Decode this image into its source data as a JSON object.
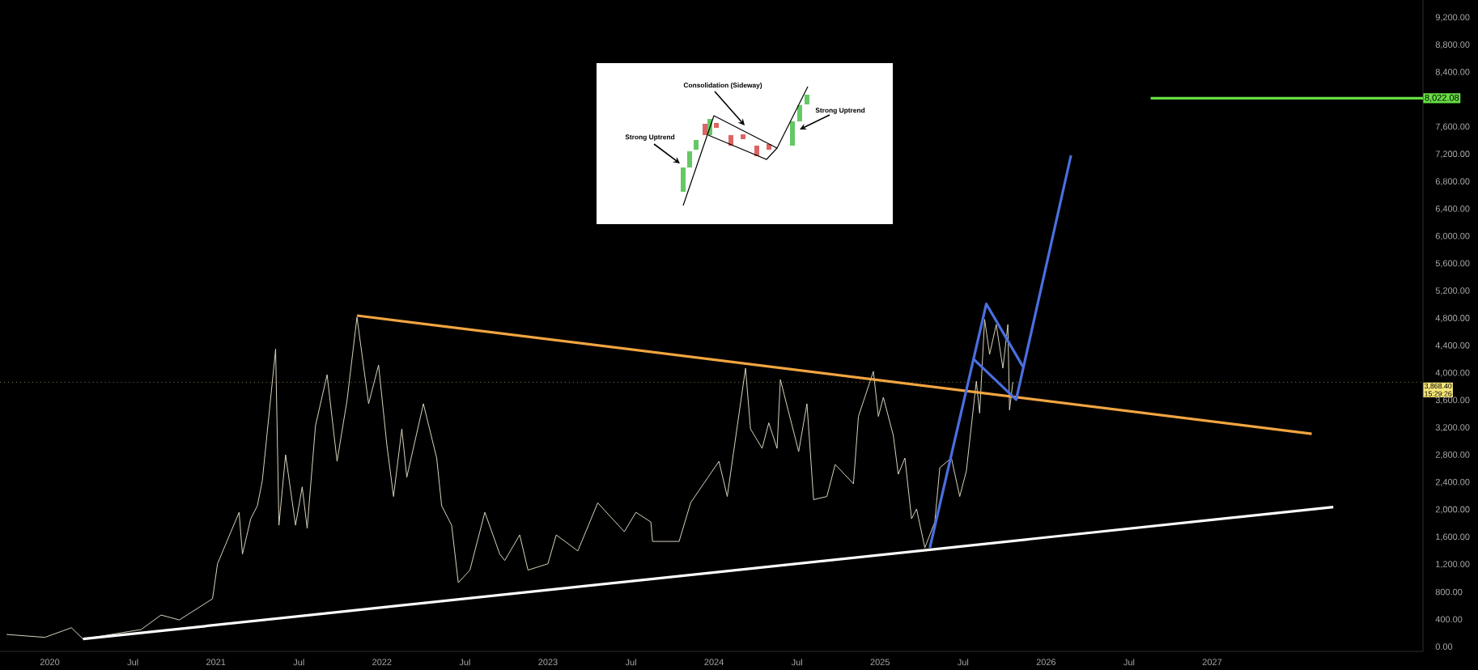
{
  "chart_data": {
    "type": "line",
    "xlim": [
      "2019-09-13",
      "2028-04-10"
    ],
    "ylim": [
      -70,
      9460
    ],
    "xticks": [
      {
        "value": "2020-01-01",
        "label": "2020"
      },
      {
        "value": "2020-07-01",
        "label": "Jul"
      },
      {
        "value": "2021-01-01",
        "label": "2021"
      },
      {
        "value": "2021-07-01",
        "label": "Jul"
      },
      {
        "value": "2022-01-01",
        "label": "2022"
      },
      {
        "value": "2022-07-01",
        "label": "Jul"
      },
      {
        "value": "2023-01-01",
        "label": "2023"
      },
      {
        "value": "2023-07-01",
        "label": "Jul"
      },
      {
        "value": "2024-01-01",
        "label": "2024"
      },
      {
        "value": "2024-07-01",
        "label": "Jul"
      },
      {
        "value": "2025-01-01",
        "label": "2025"
      },
      {
        "value": "2025-07-01",
        "label": "Jul"
      },
      {
        "value": "2026-01-01",
        "label": "2026"
      },
      {
        "value": "2026-07-01",
        "label": "Jul"
      },
      {
        "value": "2027-01-01",
        "label": "2027"
      }
    ],
    "yticks": [
      {
        "value": 0,
        "label": "0.00"
      },
      {
        "value": 400,
        "label": "400.00"
      },
      {
        "value": 800,
        "label": "800.00"
      },
      {
        "value": 1200,
        "label": "1,200.00"
      },
      {
        "value": 1600,
        "label": "1,600.00"
      },
      {
        "value": 2000,
        "label": "2,000.00"
      },
      {
        "value": 2400,
        "label": "2,400.00"
      },
      {
        "value": 2800,
        "label": "2,800.00"
      },
      {
        "value": 3200,
        "label": "3,200.00"
      },
      {
        "value": 3600,
        "label": "3,600.00"
      },
      {
        "value": 4000,
        "label": "4,000.00"
      },
      {
        "value": 4400,
        "label": "4,400.00"
      },
      {
        "value": 4800,
        "label": "4,800.00"
      },
      {
        "value": 5200,
        "label": "5,200.00"
      },
      {
        "value": 5600,
        "label": "5,600.00"
      },
      {
        "value": 6000,
        "label": "6,000.00"
      },
      {
        "value": 6400,
        "label": "6,400.00"
      },
      {
        "value": 6800,
        "label": "6,800.00"
      },
      {
        "value": 7200,
        "label": "7,200.00"
      },
      {
        "value": 7600,
        "label": "7,600.00"
      },
      {
        "value": 8400,
        "label": "8,400.00"
      },
      {
        "value": 8800,
        "label": "8,800.00"
      },
      {
        "value": 9200,
        "label": "9,200.00"
      }
    ],
    "series": [
      {
        "color": "#d8d2bc",
        "x": [
          "2019-09-27",
          "2019-12-20",
          "2020-02-18",
          "2020-03-13",
          "2020-07-19",
          "2020-09-02",
          "2020-10-12",
          "2020-12-24",
          "2021-01-05",
          "2021-02-21",
          "2021-02-28",
          "2021-03-17",
          "2021-04-01",
          "2021-04-15",
          "2021-05-11",
          "2021-05-21",
          "2021-06-02",
          "2021-06-24",
          "2021-07-08",
          "2021-07-19",
          "2021-08-07",
          "2021-09-02",
          "2021-09-24",
          "2021-10-15",
          "2021-11-07",
          "2021-12-02",
          "2021-12-24",
          "2022-01-12",
          "2022-01-26",
          "2022-02-14",
          "2022-02-25",
          "2022-04-01",
          "2022-05-03",
          "2022-05-14",
          "2022-06-02",
          "2022-06-17",
          "2022-07-12",
          "2022-08-14",
          "2022-09-17",
          "2022-09-28",
          "2022-10-30",
          "2022-11-18",
          "2023-01-01",
          "2023-01-19",
          "2023-03-09",
          "2023-04-19",
          "2023-06-17",
          "2023-07-15",
          "2023-08-14",
          "2023-08-18",
          "2023-10-15",
          "2023-11-11",
          "2024-01-12",
          "2024-01-30",
          "2024-03-09",
          "2024-03-20",
          "2024-04-15",
          "2024-04-30",
          "2024-05-18",
          "2024-05-25",
          "2024-07-05",
          "2024-07-23",
          "2024-08-07",
          "2024-09-06",
          "2024-09-24",
          "2024-11-03",
          "2024-11-14",
          "2024-12-17",
          "2024-12-27",
          "2025-01-08",
          "2025-01-30",
          "2025-02-11",
          "2025-02-25",
          "2025-03-13",
          "2025-03-24",
          "2025-04-08",
          "2025-04-30",
          "2025-05-14",
          "2025-06-06",
          "2025-06-24",
          "2025-07-08",
          "2025-07-30",
          "2025-08-07",
          "2025-08-18",
          "2025-08-29",
          "2025-09-13",
          "2025-09-27",
          "2025-10-08",
          "2025-10-12",
          "2025-10-19"
        ],
        "values": [
          178,
          135,
          276,
          111,
          250,
          462,
          390,
          700,
          1212,
          1965,
          1353,
          1870,
          2060,
          2430,
          4352,
          1776,
          2806,
          1776,
          2337,
          1729,
          3232,
          3978,
          2711,
          3600,
          4820,
          3553,
          4120,
          2948,
          2196,
          3185,
          2478,
          3553,
          2759,
          2060,
          1776,
          935,
          1119,
          1965,
          1353,
          1260,
          1634,
          1119,
          1212,
          1634,
          1400,
          2103,
          1681,
          1965,
          1823,
          1539,
          1539,
          2108,
          2711,
          2196,
          4073,
          3185,
          2900,
          3274,
          2900,
          3907,
          2853,
          3553,
          2150,
          2196,
          2664,
          2382,
          3368,
          4026,
          3368,
          3647,
          3090,
          2522,
          2759,
          1870,
          2013,
          1447,
          1823,
          2617,
          2759,
          2196,
          2569,
          3883,
          3415,
          4787,
          4276,
          4712,
          4073,
          4712,
          3461,
          3872
        ]
      },
      {
        "color": "#f2a541",
        "x": [
          "2021-11-07",
          "2027-08-07"
        ],
        "values": [
          4843,
          3114
        ]
      },
      {
        "color": "#ffffff",
        "x": [
          "2020-03-13",
          "2027-09-24"
        ],
        "values": [
          111,
          2041
        ]
      },
      {
        "color": "#4a6fe0",
        "x": [
          "2025-04-19",
          "2025-08-21",
          "2025-11-11"
        ],
        "values": [
          1445,
          5014,
          4099
        ]
      },
      {
        "color": "#4a6fe0",
        "x": [
          "2025-07-23",
          "2025-10-26",
          "2026-02-25"
        ],
        "values": [
          4215,
          3614,
          7187
        ]
      },
      {
        "color": "#66dd44",
        "x": [
          "2026-08-18",
          "2028-04-10"
        ],
        "values": [
          8022.08,
          8022.08
        ],
        "value_labels": [
          null,
          "8,022.08"
        ]
      }
    ],
    "ref_lines": [
      {
        "axis": "y",
        "value": 3868.4,
        "label": "3,868.40",
        "color": "#8a7a50",
        "line_style": "dotted"
      }
    ],
    "annotations": [
      "Strong Uptrend",
      "Consolidation (Sideway)",
      "Strong Uptrend",
      "15:29:26"
    ]
  }
}
